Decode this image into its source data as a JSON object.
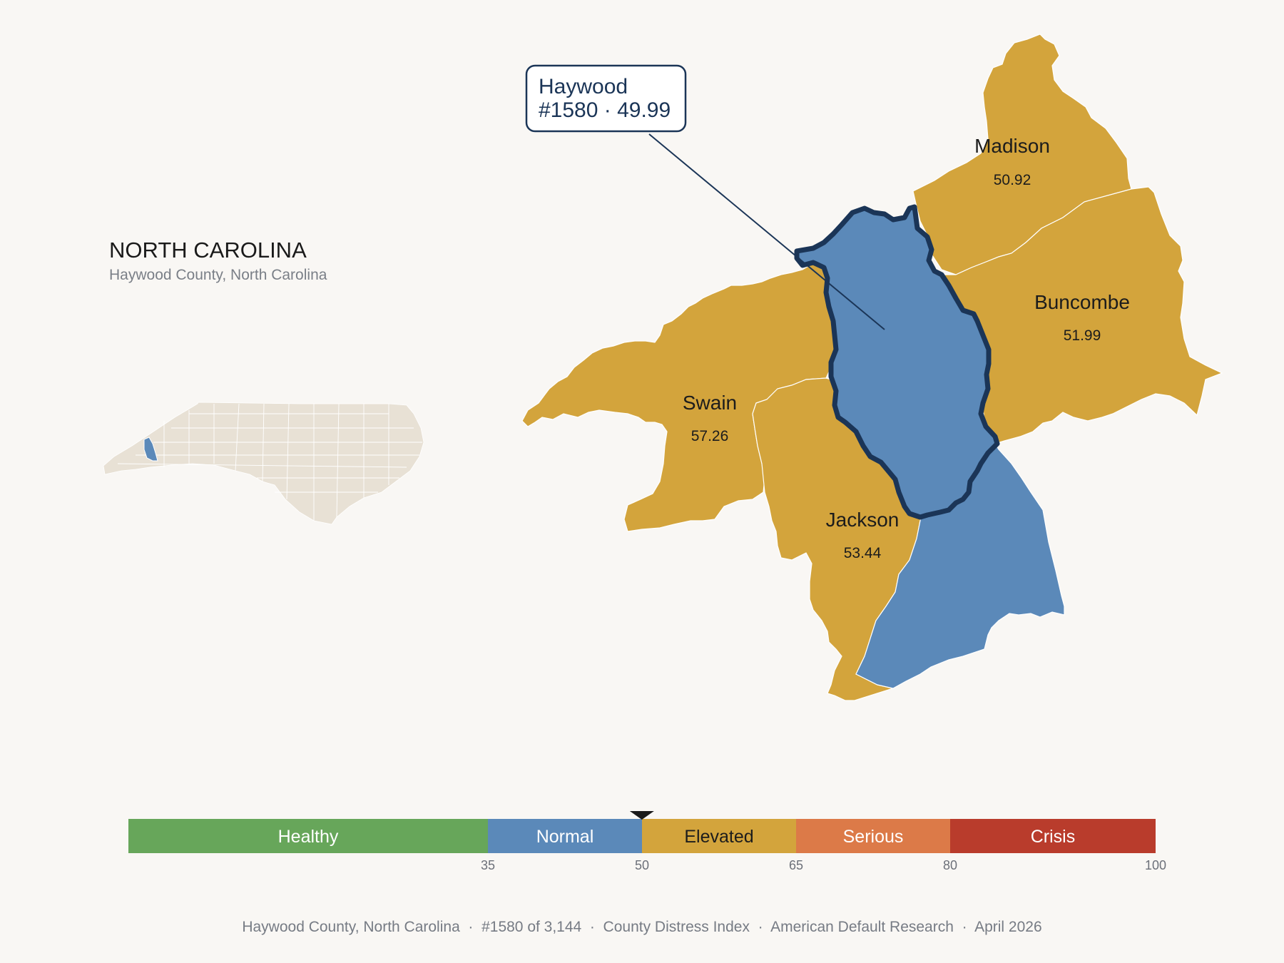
{
  "state": {
    "title": "NORTH CAROLINA",
    "subtitle": "Haywood County, North Carolina"
  },
  "callout": {
    "line1": "Haywood",
    "line2": "#1580 · 49.99"
  },
  "counties": [
    {
      "id": "madison",
      "name": "Madison",
      "value": "50.92",
      "category": "Elevated"
    },
    {
      "id": "buncombe",
      "name": "Buncombe",
      "value": "51.99",
      "category": "Elevated"
    },
    {
      "id": "swain",
      "name": "Swain",
      "value": "57.26",
      "category": "Elevated"
    },
    {
      "id": "jackson",
      "name": "Jackson",
      "value": "53.44",
      "category": "Elevated"
    },
    {
      "id": "haywood",
      "name": "Haywood",
      "value": "49.99",
      "category": "Normal",
      "highlighted": true
    },
    {
      "id": "transylvania",
      "name": "",
      "value": "",
      "category": "Normal"
    }
  ],
  "scale": {
    "min": 0,
    "max": 100,
    "marker_value": 49.99,
    "bands": [
      {
        "label": "Healthy",
        "from": 0,
        "to": 35,
        "color": "#67a65a",
        "text_color": "#ffffff"
      },
      {
        "label": "Normal",
        "from": 35,
        "to": 50,
        "color": "#5b89b9",
        "text_color": "#ffffff"
      },
      {
        "label": "Elevated",
        "from": 50,
        "to": 65,
        "color": "#d3a43c",
        "text_color": "#1c1c1c"
      },
      {
        "label": "Serious",
        "from": 65,
        "to": 80,
        "color": "#dc7a48",
        "text_color": "#ffffff"
      },
      {
        "label": "Crisis",
        "from": 80,
        "to": 100,
        "color": "#b93c2c",
        "text_color": "#ffffff"
      }
    ],
    "ticks": [
      "35",
      "50",
      "65",
      "80",
      "100"
    ]
  },
  "colors": {
    "background": "#f9f7f4",
    "elevated": "#d3a43c",
    "normal": "#5b89b9",
    "highlight_outline": "#1b3557",
    "inset_fill": "#e8e1d5"
  },
  "footer": {
    "text": "Haywood County, North Carolina  ·  #1580 of 3,144  ·  County Distress Index  ·  American Default Research  ·  April 2026"
  }
}
